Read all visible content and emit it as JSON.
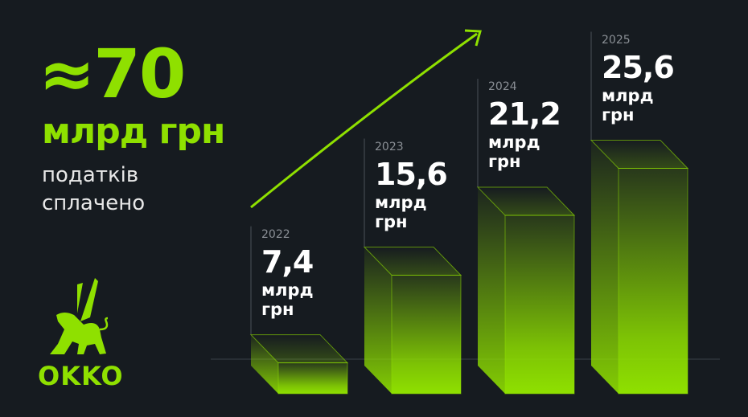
{
  "headline": {
    "value": "≈70",
    "unit": "млрд грн",
    "line1": "податків",
    "line2": "сплачено"
  },
  "brand": {
    "name": "OKKO"
  },
  "colors": {
    "accent": "#8fe000",
    "background": "#161b20"
  },
  "chart_data": {
    "type": "bar",
    "style": "3d",
    "categories": [
      "2022",
      "2023",
      "2024",
      "2025"
    ],
    "values": [
      7.4,
      15.6,
      21.2,
      25.6
    ],
    "value_labels": [
      "7,4",
      "15,6",
      "21,2",
      "25,6"
    ],
    "unit_line1": "млрд",
    "unit_line2": "грн",
    "trend_arrow": true,
    "grid": false
  }
}
